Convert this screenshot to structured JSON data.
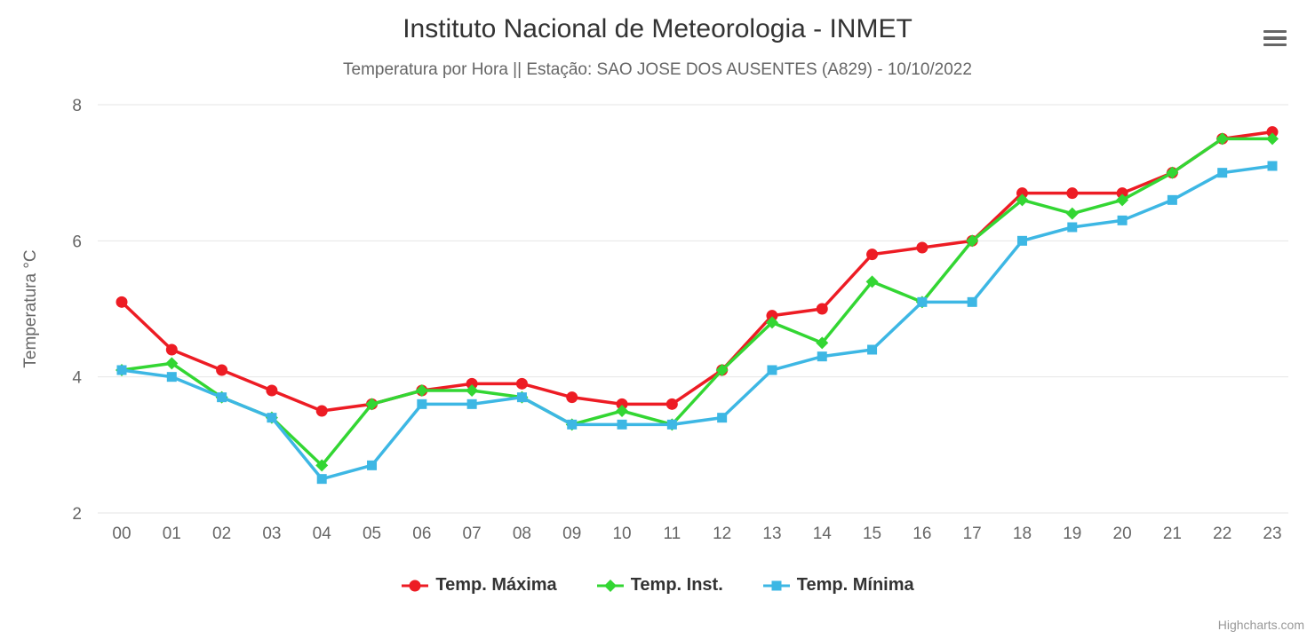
{
  "chart": {
    "title": "Instituto Nacional de Meteorologia - INMET",
    "subtitle": "Temperatura por Hora || Estação: SAO JOSE DOS AUSENTES (A829) - 10/10/2022",
    "credits": "Highcharts.com",
    "context_menu_icon": "hamburger-icon"
  },
  "chart_data": {
    "type": "line",
    "title": "Instituto Nacional de Meteorologia - INMET",
    "subtitle": "Temperatura por Hora || Estação: SAO JOSE DOS AUSENTES (A829) - 10/10/2022",
    "xlabel": "",
    "ylabel": "Temperatura °C",
    "ylim": [
      2,
      8
    ],
    "yticks": [
      2,
      4,
      6,
      8
    ],
    "grid": "horizontal",
    "legend_position": "bottom",
    "categories": [
      "00",
      "01",
      "02",
      "03",
      "04",
      "05",
      "06",
      "07",
      "08",
      "09",
      "10",
      "11",
      "12",
      "13",
      "14",
      "15",
      "16",
      "17",
      "18",
      "19",
      "20",
      "21",
      "22",
      "23"
    ],
    "series": [
      {
        "id": "temp-maxima",
        "name": "Temp. Máxima",
        "color": "#ed1c24",
        "marker": "circle",
        "values": [
          5.1,
          4.4,
          4.1,
          3.8,
          3.5,
          3.6,
          3.8,
          3.9,
          3.9,
          3.7,
          3.6,
          3.6,
          4.1,
          4.9,
          5.0,
          5.8,
          5.9,
          6.0,
          6.7,
          6.7,
          6.7,
          7.0,
          7.5,
          7.6
        ]
      },
      {
        "id": "temp-inst",
        "name": "Temp. Inst.",
        "color": "#33d633",
        "marker": "diamond",
        "values": [
          4.1,
          4.2,
          3.7,
          3.4,
          2.7,
          3.6,
          3.8,
          3.8,
          3.7,
          3.3,
          3.5,
          3.3,
          4.1,
          4.8,
          4.5,
          5.4,
          5.1,
          6.0,
          6.6,
          6.4,
          6.6,
          7.0,
          7.5,
          7.5
        ]
      },
      {
        "id": "temp-minima",
        "name": "Temp. Mínima",
        "color": "#3db7e4",
        "marker": "square",
        "values": [
          4.1,
          4.0,
          3.7,
          3.4,
          2.5,
          2.7,
          3.6,
          3.6,
          3.7,
          3.3,
          3.3,
          3.3,
          3.4,
          4.1,
          4.3,
          4.4,
          5.1,
          5.1,
          6.0,
          6.2,
          6.3,
          6.6,
          7.0,
          7.1
        ]
      }
    ]
  }
}
